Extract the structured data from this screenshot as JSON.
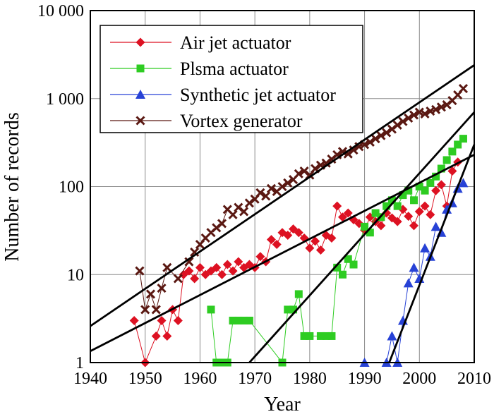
{
  "chart_data": {
    "type": "scatter",
    "title": "",
    "xlabel": "Year",
    "ylabel": "Number of records",
    "xlim": [
      1940,
      2010
    ],
    "ylim": [
      1,
      10000
    ],
    "y_scale": "log",
    "grid": true,
    "legend_position": "top-left",
    "x_ticks": [
      1940,
      1950,
      1960,
      1970,
      1980,
      1990,
      2000,
      2010
    ],
    "y_ticks": [
      {
        "value": 1,
        "label": "1"
      },
      {
        "value": 10,
        "label": "10"
      },
      {
        "value": 100,
        "label": "100"
      },
      {
        "value": 1000,
        "label": "1 000"
      },
      {
        "value": 10000,
        "label": "10 000"
      }
    ],
    "series": [
      {
        "name": "Air jet actuator",
        "color": "#dd1122",
        "marker": "diamond",
        "points": [
          [
            1948,
            3
          ],
          [
            1950,
            1
          ],
          [
            1952,
            2
          ],
          [
            1953,
            3
          ],
          [
            1954,
            2
          ],
          [
            1955,
            4
          ],
          [
            1956,
            3
          ],
          [
            1957,
            10
          ],
          [
            1958,
            11
          ],
          [
            1959,
            9
          ],
          [
            1960,
            12
          ],
          [
            1961,
            10
          ],
          [
            1962,
            11
          ],
          [
            1963,
            12
          ],
          [
            1964,
            10
          ],
          [
            1965,
            13
          ],
          [
            1966,
            11
          ],
          [
            1967,
            14
          ],
          [
            1968,
            12
          ],
          [
            1969,
            13
          ],
          [
            1970,
            12
          ],
          [
            1971,
            16
          ],
          [
            1972,
            14
          ],
          [
            1973,
            25
          ],
          [
            1974,
            22
          ],
          [
            1975,
            30
          ],
          [
            1976,
            28
          ],
          [
            1977,
            33
          ],
          [
            1978,
            30
          ],
          [
            1979,
            26
          ],
          [
            1980,
            20
          ],
          [
            1981,
            24
          ],
          [
            1982,
            19
          ],
          [
            1983,
            28
          ],
          [
            1984,
            26
          ],
          [
            1985,
            60
          ],
          [
            1986,
            45
          ],
          [
            1987,
            50
          ],
          [
            1988,
            42
          ],
          [
            1989,
            38
          ],
          [
            1990,
            32
          ],
          [
            1991,
            45
          ],
          [
            1992,
            40
          ],
          [
            1993,
            36
          ],
          [
            1994,
            50
          ],
          [
            1995,
            44
          ],
          [
            1996,
            40
          ],
          [
            1997,
            55
          ],
          [
            1998,
            46
          ],
          [
            1999,
            36
          ],
          [
            2000,
            52
          ],
          [
            2001,
            60
          ],
          [
            2002,
            48
          ],
          [
            2003,
            90
          ],
          [
            2004,
            105
          ],
          [
            2005,
            60
          ],
          [
            2006,
            150
          ],
          [
            2007,
            190
          ]
        ]
      },
      {
        "name": "Plsma actuator",
        "color": "#2ecc22",
        "marker": "square",
        "points": [
          [
            1962,
            4
          ],
          [
            1963,
            1
          ],
          [
            1964,
            1
          ],
          [
            1965,
            1
          ],
          [
            1966,
            3
          ],
          [
            1967,
            3
          ],
          [
            1968,
            3
          ],
          [
            1969,
            3
          ],
          [
            1975,
            1
          ],
          [
            1976,
            4
          ],
          [
            1977,
            4
          ],
          [
            1978,
            6
          ],
          [
            1979,
            2
          ],
          [
            1980,
            2
          ],
          [
            1982,
            2
          ],
          [
            1983,
            2
          ],
          [
            1984,
            2
          ],
          [
            1985,
            12
          ],
          [
            1986,
            10
          ],
          [
            1987,
            15
          ],
          [
            1988,
            13
          ],
          [
            1990,
            35
          ],
          [
            1991,
            30
          ],
          [
            1992,
            50
          ],
          [
            1993,
            45
          ],
          [
            1994,
            60
          ],
          [
            1995,
            70
          ],
          [
            1996,
            60
          ],
          [
            1997,
            80
          ],
          [
            1998,
            90
          ],
          [
            1999,
            70
          ],
          [
            2000,
            100
          ],
          [
            2001,
            90
          ],
          [
            2002,
            110
          ],
          [
            2003,
            130
          ],
          [
            2004,
            160
          ],
          [
            2005,
            200
          ],
          [
            2006,
            250
          ],
          [
            2007,
            300
          ],
          [
            2008,
            350
          ]
        ]
      },
      {
        "name": "Synthetic jet actuator",
        "color": "#2742d6",
        "marker": "triangle",
        "points": [
          [
            1990,
            1
          ],
          [
            1994,
            1
          ],
          [
            1995,
            2
          ],
          [
            1996,
            1
          ],
          [
            1997,
            3
          ],
          [
            1998,
            8
          ],
          [
            1999,
            12
          ],
          [
            2000,
            9
          ],
          [
            2001,
            20
          ],
          [
            2002,
            16
          ],
          [
            2003,
            35
          ],
          [
            2004,
            30
          ],
          [
            2005,
            55
          ],
          [
            2006,
            65
          ],
          [
            2007,
            95
          ],
          [
            2008,
            110
          ]
        ]
      },
      {
        "name": "Vortex generator",
        "color": "#5a1812",
        "marker": "x",
        "points": [
          [
            1949,
            11
          ],
          [
            1950,
            4
          ],
          [
            1951,
            6
          ],
          [
            1952,
            4
          ],
          [
            1953,
            7
          ],
          [
            1954,
            12
          ],
          [
            1956,
            9
          ],
          [
            1958,
            14
          ],
          [
            1959,
            18
          ],
          [
            1960,
            22
          ],
          [
            1961,
            26
          ],
          [
            1962,
            30
          ],
          [
            1963,
            34
          ],
          [
            1964,
            38
          ],
          [
            1965,
            55
          ],
          [
            1966,
            48
          ],
          [
            1967,
            58
          ],
          [
            1968,
            52
          ],
          [
            1969,
            65
          ],
          [
            1970,
            72
          ],
          [
            1971,
            85
          ],
          [
            1972,
            78
          ],
          [
            1973,
            95
          ],
          [
            1974,
            88
          ],
          [
            1975,
            100
          ],
          [
            1976,
            110
          ],
          [
            1977,
            120
          ],
          [
            1978,
            140
          ],
          [
            1979,
            150
          ],
          [
            1980,
            135
          ],
          [
            1981,
            160
          ],
          [
            1982,
            175
          ],
          [
            1983,
            185
          ],
          [
            1984,
            205
          ],
          [
            1985,
            230
          ],
          [
            1986,
            250
          ],
          [
            1987,
            235
          ],
          [
            1988,
            260
          ],
          [
            1989,
            285
          ],
          [
            1990,
            300
          ],
          [
            1991,
            320
          ],
          [
            1992,
            350
          ],
          [
            1993,
            380
          ],
          [
            1994,
            410
          ],
          [
            1995,
            450
          ],
          [
            1996,
            500
          ],
          [
            1997,
            550
          ],
          [
            1998,
            600
          ],
          [
            1999,
            650
          ],
          [
            2000,
            700
          ],
          [
            2001,
            670
          ],
          [
            2002,
            720
          ],
          [
            2003,
            750
          ],
          [
            2004,
            800
          ],
          [
            2005,
            850
          ],
          [
            2006,
            950
          ],
          [
            2007,
            1100
          ],
          [
            2008,
            1300
          ]
        ]
      }
    ],
    "trend_lines": [
      {
        "name": "vortex-generator-trend",
        "from": [
          1940,
          2.6
        ],
        "to": [
          2010,
          2400
        ]
      },
      {
        "name": "air-jet-actuator-trend",
        "from": [
          1940,
          1.35
        ],
        "to": [
          2010,
          230
        ]
      },
      {
        "name": "plasma-actuator-trend",
        "from": [
          1969,
          1
        ],
        "to": [
          2010,
          700
        ]
      },
      {
        "name": "synthetic-jet-actuator-trend",
        "from": [
          1994.5,
          1
        ],
        "to": [
          2010,
          300
        ]
      }
    ],
    "colors": {
      "trend_line": "#000000",
      "grid": "#8c8c8c",
      "frame": "#000000",
      "background": "#ffffff"
    }
  }
}
